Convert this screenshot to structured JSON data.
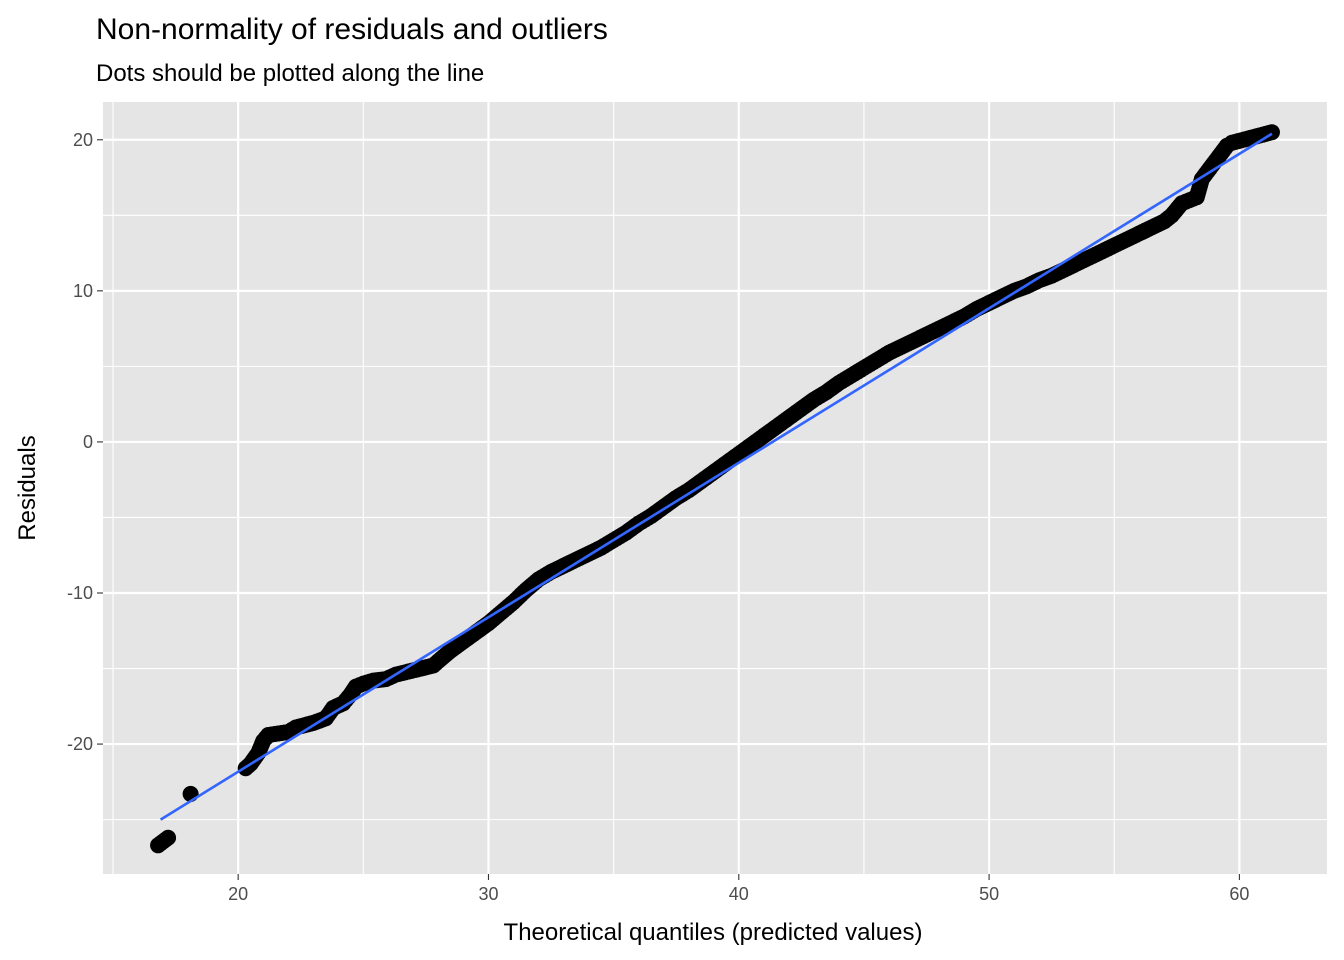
{
  "chart_data": {
    "type": "scatter",
    "title": "Non-normality of residuals and outliers",
    "subtitle": "Dots should be plotted along the line",
    "xlabel": "Theoretical quantiles (predicted values)",
    "ylabel": "Residuals",
    "xlim": [
      14.6,
      63.5
    ],
    "ylim": [
      -28.6,
      22.5
    ],
    "x_ticks": [
      20,
      30,
      40,
      50,
      60
    ],
    "y_ticks": [
      -20,
      -10,
      0,
      10,
      20
    ],
    "x_tick_labels": [
      "20",
      "30",
      "40",
      "50",
      "60"
    ],
    "y_tick_labels": [
      "-20",
      "-10",
      "0",
      "10",
      "20"
    ],
    "x_minor": [
      15,
      25,
      35,
      45,
      55
    ],
    "y_minor": [
      -25,
      -15,
      -5,
      5,
      15
    ],
    "grid": true,
    "legend": "none",
    "colors": {
      "panel": "#e5e5e5",
      "grid": "#ffffff",
      "points": "#000000",
      "line": "#3366ff"
    },
    "reference_line": {
      "x": [
        16.9,
        61.3
      ],
      "y": [
        -25.0,
        20.4
      ]
    },
    "series": [
      {
        "x": [
          16.8,
          17.2,
          18.1,
          20.3,
          20.5,
          20.8,
          21.0,
          21.2,
          22.0,
          22.3,
          23.0,
          23.5,
          23.8,
          24.2,
          24.5,
          24.7,
          25.0,
          25.4,
          25.9,
          26.3,
          26.8,
          27.3,
          27.8,
          28.0,
          28.5,
          29.0,
          29.5,
          30.0,
          30.5,
          31.0,
          31.5,
          32.0,
          32.5,
          33.0,
          33.5,
          34.0,
          34.5,
          35.0,
          35.5,
          36.0,
          36.5,
          37.0,
          37.5,
          38.0,
          38.5,
          39.0,
          39.5,
          40.0,
          40.5,
          41.0,
          41.5,
          42.0,
          42.5,
          43.0,
          43.5,
          44.0,
          44.5,
          45.0,
          45.5,
          46.0,
          46.5,
          47.0,
          47.5,
          48.0,
          48.5,
          49.0,
          49.5,
          50.0,
          50.5,
          51.0,
          51.5,
          52.0,
          52.5,
          53.0,
          53.5,
          54.0,
          54.5,
          55.0,
          55.5,
          56.0,
          56.5,
          57.0,
          57.3,
          57.7,
          58.0,
          58.3,
          58.5,
          59.5,
          59.7,
          61.3
        ],
        "y": [
          -26.7,
          -26.2,
          -23.3,
          -21.6,
          -21.3,
          -20.6,
          -19.8,
          -19.4,
          -19.2,
          -18.9,
          -18.6,
          -18.3,
          -17.6,
          -17.3,
          -16.7,
          -16.2,
          -16.0,
          -15.8,
          -15.7,
          -15.4,
          -15.2,
          -15.0,
          -14.8,
          -14.5,
          -13.8,
          -13.2,
          -12.6,
          -12.0,
          -11.3,
          -10.6,
          -9.8,
          -9.1,
          -8.6,
          -8.2,
          -7.8,
          -7.4,
          -7.0,
          -6.5,
          -6.0,
          -5.4,
          -4.9,
          -4.3,
          -3.7,
          -3.2,
          -2.6,
          -2.0,
          -1.4,
          -0.8,
          -0.2,
          0.4,
          1.0,
          1.6,
          2.2,
          2.8,
          3.3,
          3.9,
          4.4,
          4.9,
          5.4,
          5.9,
          6.3,
          6.7,
          7.1,
          7.5,
          7.9,
          8.3,
          8.8,
          9.2,
          9.6,
          10.0,
          10.3,
          10.7,
          11.0,
          11.4,
          11.8,
          12.2,
          12.6,
          13.0,
          13.4,
          13.8,
          14.2,
          14.6,
          15.0,
          15.8,
          16.0,
          16.2,
          17.4,
          19.6,
          19.8,
          20.5
        ]
      }
    ]
  }
}
